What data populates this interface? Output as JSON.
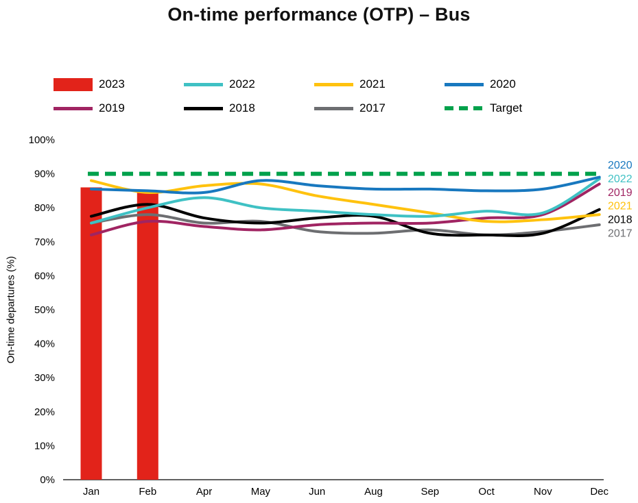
{
  "page": {
    "title": "On-time performance (OTP) – Bus"
  },
  "legend": {
    "rows": [
      [
        {
          "label": "2023",
          "type": "bar",
          "color": "#e2231a"
        },
        {
          "label": "2022",
          "type": "line",
          "color": "#3fc1c4"
        },
        {
          "label": "2021",
          "type": "line",
          "color": "#ffc20e"
        },
        {
          "label": "2020",
          "type": "line",
          "color": "#1878bf"
        }
      ],
      [
        {
          "label": "2019",
          "type": "line",
          "color": "#a02462"
        },
        {
          "label": "2018",
          "type": "line",
          "color": "#000000"
        },
        {
          "label": "2017",
          "type": "line",
          "color": "#6d6e71"
        },
        {
          "label": "Target",
          "type": "dashed",
          "color": "#00a14b"
        }
      ]
    ]
  },
  "chart_data": {
    "type": "line",
    "title": "On-time performance (OTP) – Bus",
    "xlabel": "",
    "ylabel": "On-time departures (%)",
    "ylim": [
      0,
      100
    ],
    "y_tick_labels": [
      "0%",
      "10%",
      "20%",
      "30%",
      "40%",
      "50%",
      "60%",
      "70%",
      "80%",
      "90%",
      "100%"
    ],
    "categories": [
      "Jan",
      "Feb",
      "Apr",
      "May",
      "Jun",
      "Aug",
      "Sep",
      "Oct",
      "Nov",
      "Dec"
    ],
    "grid": false,
    "legend_position": "top",
    "bars": {
      "name": "2023",
      "color": "#e2231a",
      "values": [
        86,
        85,
        null,
        null,
        null,
        null,
        null,
        null,
        null,
        null
      ]
    },
    "series": [
      {
        "name": "2017",
        "color": "#6d6e71",
        "values": [
          75.5,
          78,
          75.5,
          76,
          73,
          72.5,
          73.5,
          72,
          73,
          75
        ],
        "end_label_pct": 72.5
      },
      {
        "name": "2018",
        "color": "#000000",
        "values": [
          77.5,
          81,
          77,
          75.5,
          77,
          77.5,
          72.5,
          72,
          72.5,
          79.5
        ],
        "end_label_pct": 76.5
      },
      {
        "name": "2019",
        "color": "#a02462",
        "values": [
          72,
          76,
          74.5,
          73.5,
          75,
          75.5,
          75.5,
          77,
          78,
          87
        ],
        "end_label_pct": 84.5
      },
      {
        "name": "2021",
        "color": "#ffc20e",
        "values": [
          88,
          84.5,
          86.5,
          87,
          83.5,
          81,
          78.5,
          76,
          76.5,
          78
        ],
        "end_label_pct": 80.5
      },
      {
        "name": "2022",
        "color": "#3fc1c4",
        "values": [
          75.5,
          80,
          83,
          80,
          79,
          78,
          77.5,
          79,
          78.5,
          88.5
        ],
        "end_label_pct": 88.5
      },
      {
        "name": "2020",
        "color": "#1878bf",
        "values": [
          85.5,
          85,
          84.5,
          88,
          86.5,
          85.5,
          85.5,
          85,
          85.5,
          89
        ],
        "end_label_pct": 92.5
      }
    ],
    "target": {
      "name": "Target",
      "value": 90,
      "color": "#00a14b"
    }
  }
}
